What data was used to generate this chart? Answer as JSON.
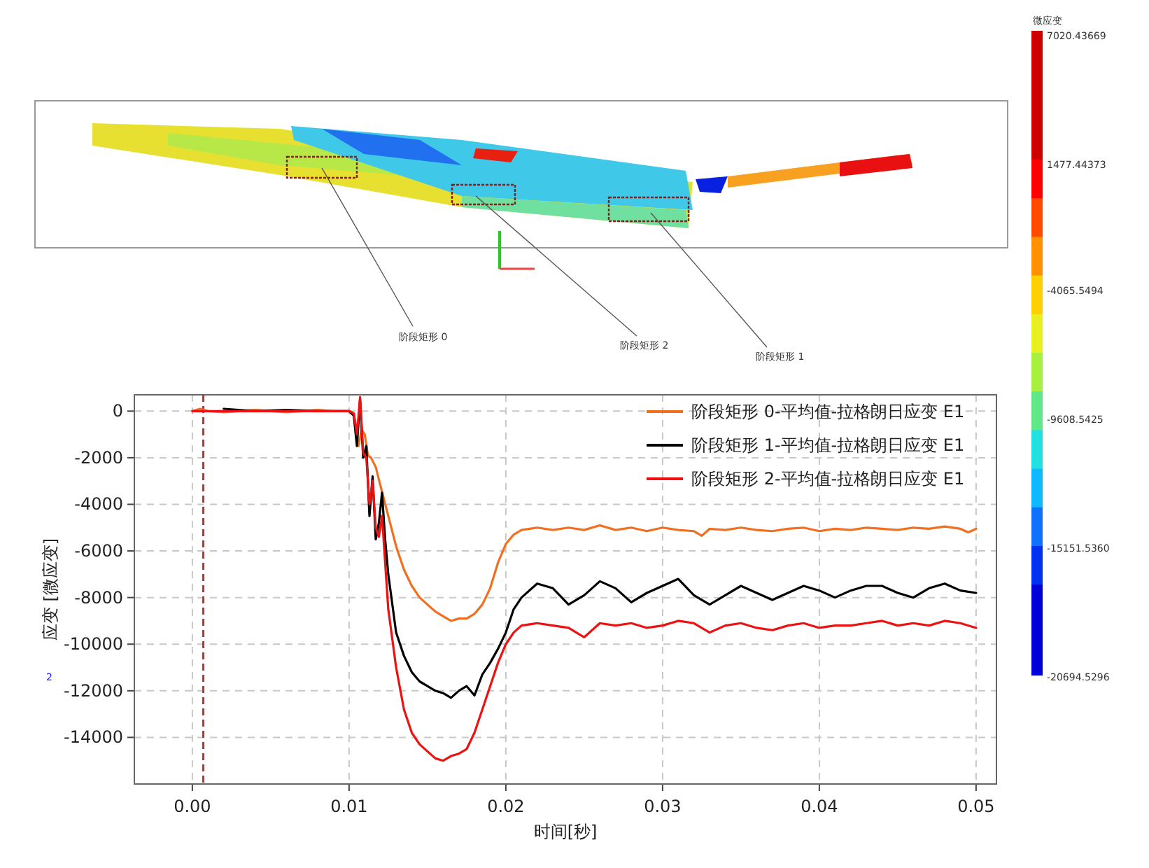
{
  "chart_data": [
    {
      "type": "other",
      "title": "微应变",
      "annotations": [
        "7020.43669",
        "1477.44373",
        "-4065.5494",
        "-9608.5425",
        "-15151.5360",
        "-20694.5296",
        "阶段矩形 0",
        "阶段矩形 2",
        "阶段矩形 1",
        "2"
      ]
    },
    {
      "type": "line",
      "xlabel": "时间[秒]",
      "ylabel": "应变 [微应变]",
      "xlim": [
        -0.0037,
        0.0513
      ],
      "ylim": [
        -16000,
        700
      ],
      "xticks": [
        {
          "value": 0,
          "label": "0.00"
        },
        {
          "value": 0.01,
          "label": "0.01"
        },
        {
          "value": 0.02,
          "label": "0.02"
        },
        {
          "value": 0.03,
          "label": "0.03"
        },
        {
          "value": 0.04,
          "label": "0.04"
        },
        {
          "value": 0.05,
          "label": "0.05"
        }
      ],
      "yticks": [
        0,
        -2000,
        -4000,
        -6000,
        -8000,
        -10000,
        -12000,
        -14000
      ],
      "grid": true,
      "legend": "top right",
      "marker": "none",
      "line_style": "solid",
      "ref_lines": [
        {
          "axis": "x",
          "value": 0.0007,
          "label": null,
          "color": "#d62728",
          "line_style": "dashed"
        }
      ],
      "series": [
        {
          "name": "阶段矩形 0-平均值-拉格朗日应变 E1",
          "color": "#f07020",
          "x": [
            0,
            0.0005,
            0.001,
            0.002,
            0.003,
            0.004,
            0.005,
            0.006,
            0.007,
            0.008,
            0.009,
            0.01,
            0.0103,
            0.0106,
            0.0108,
            0.011,
            0.0112,
            0.0114,
            0.0117,
            0.012,
            0.0125,
            0.013,
            0.0135,
            0.014,
            0.0145,
            0.015,
            0.0155,
            0.016,
            0.0165,
            0.017,
            0.0175,
            0.018,
            0.0185,
            0.019,
            0.0195,
            0.02,
            0.0205,
            0.021,
            0.022,
            0.023,
            0.024,
            0.025,
            0.026,
            0.027,
            0.028,
            0.029,
            0.03,
            0.031,
            0.032,
            0.0325,
            0.033,
            0.034,
            0.035,
            0.036,
            0.037,
            0.038,
            0.039,
            0.04,
            0.041,
            0.042,
            0.043,
            0.044,
            0.045,
            0.046,
            0.047,
            0.048,
            0.049,
            0.0495,
            0.05
          ],
          "values": [
            0,
            100,
            0,
            -50,
            0,
            50,
            0,
            -50,
            0,
            50,
            0,
            0,
            -100,
            -1500,
            -800,
            -1000,
            -1900,
            -2000,
            -2400,
            -3200,
            -4500,
            -5800,
            -6800,
            -7500,
            -8000,
            -8300,
            -8600,
            -8800,
            -9000,
            -8900,
            -8900,
            -8700,
            -8300,
            -7600,
            -6500,
            -5700,
            -5300,
            -5100,
            -5000,
            -5100,
            -5000,
            -5100,
            -4900,
            -5100,
            -5000,
            -5150,
            -5000,
            -5100,
            -5150,
            -5350,
            -5050,
            -5100,
            -5000,
            -5100,
            -5150,
            -5050,
            -5000,
            -5150,
            -5050,
            -5100,
            -5000,
            -5050,
            -5100,
            -5000,
            -5050,
            -4950,
            -5050,
            -5200,
            -5050
          ]
        },
        {
          "name": "阶段矩形 1-平均值-拉格朗日应变 E1",
          "color": "#000000",
          "x": [
            0.002,
            0.004,
            0.006,
            0.008,
            0.01,
            0.0103,
            0.0105,
            0.0107,
            0.0109,
            0.0111,
            0.0113,
            0.0115,
            0.0117,
            0.0119,
            0.0121,
            0.0123,
            0.0125,
            0.013,
            0.0135,
            0.014,
            0.0145,
            0.015,
            0.0155,
            0.016,
            0.0165,
            0.017,
            0.0175,
            0.018,
            0.0185,
            0.019,
            0.0195,
            0.02,
            0.0205,
            0.021,
            0.022,
            0.023,
            0.024,
            0.025,
            0.026,
            0.027,
            0.028,
            0.029,
            0.03,
            0.031,
            0.032,
            0.033,
            0.034,
            0.035,
            0.036,
            0.037,
            0.038,
            0.039,
            0.04,
            0.041,
            0.042,
            0.043,
            0.044,
            0.045,
            0.046,
            0.047,
            0.048,
            0.049,
            0.05
          ],
          "values": [
            100,
            0,
            50,
            0,
            0,
            -200,
            -1500,
            500,
            -2000,
            -1500,
            -4500,
            -2800,
            -5500,
            -4800,
            -3500,
            -5500,
            -7000,
            -9500,
            -10500,
            -11200,
            -11600,
            -11800,
            -12000,
            -12100,
            -12300,
            -12000,
            -11800,
            -12200,
            -11300,
            -10800,
            -10200,
            -9500,
            -8500,
            -8000,
            -7400,
            -7600,
            -8300,
            -7900,
            -7300,
            -7600,
            -8200,
            -7800,
            -7500,
            -7200,
            -7900,
            -8300,
            -7900,
            -7500,
            -7800,
            -8100,
            -7800,
            -7500,
            -7700,
            -8000,
            -7700,
            -7500,
            -7500,
            -7800,
            -8000,
            -7600,
            -7400,
            -7700,
            -7800
          ]
        },
        {
          "name": "阶段矩形 2-平均值-拉格朗日应变 E1",
          "color": "#ee1111",
          "x": [
            0,
            0.002,
            0.004,
            0.006,
            0.008,
            0.01,
            0.0103,
            0.0105,
            0.0107,
            0.0109,
            0.0111,
            0.0113,
            0.0115,
            0.0117,
            0.0119,
            0.0121,
            0.0123,
            0.0125,
            0.013,
            0.0135,
            0.014,
            0.0145,
            0.015,
            0.0155,
            0.016,
            0.0165,
            0.017,
            0.0175,
            0.018,
            0.0185,
            0.019,
            0.0195,
            0.02,
            0.0205,
            0.021,
            0.022,
            0.023,
            0.024,
            0.025,
            0.026,
            0.027,
            0.028,
            0.029,
            0.03,
            0.031,
            0.032,
            0.033,
            0.034,
            0.035,
            0.036,
            0.037,
            0.038,
            0.039,
            0.04,
            0.041,
            0.042,
            0.043,
            0.044,
            0.045,
            0.046,
            0.047,
            0.048,
            0.049,
            0.05
          ],
          "values": [
            0,
            0,
            0,
            0,
            0,
            0,
            -100,
            -1000,
            600,
            -1800,
            -2000,
            -4000,
            -3000,
            -5000,
            -5400,
            -4500,
            -6500,
            -8500,
            -11000,
            -12800,
            -13800,
            -14300,
            -14600,
            -14900,
            -15000,
            -14800,
            -14700,
            -14500,
            -13800,
            -12800,
            -11800,
            -10800,
            -10000,
            -9500,
            -9200,
            -9100,
            -9200,
            -9300,
            -9700,
            -9100,
            -9200,
            -9100,
            -9300,
            -9200,
            -9000,
            -9100,
            -9500,
            -9200,
            -9100,
            -9300,
            -9400,
            -9200,
            -9100,
            -9300,
            -9200,
            -9200,
            -9100,
            -9000,
            -9200,
            -9100,
            -9200,
            -9000,
            -9100,
            -9300
          ]
        }
      ]
    }
  ]
}
